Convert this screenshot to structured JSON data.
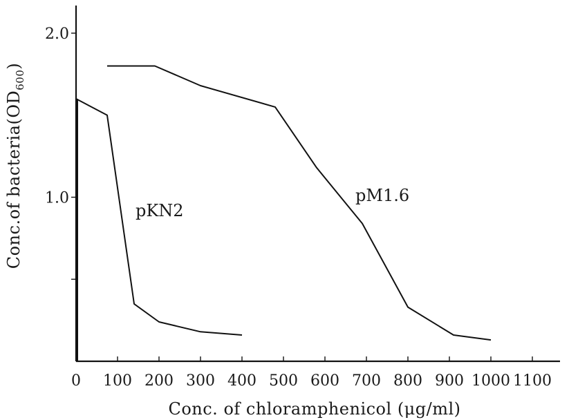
{
  "chart_data": {
    "type": "line",
    "xlabel": "Conc. of chloramphenicol (μg/ml)",
    "ylabel": "Conc.of bacteria(OD600)",
    "xlim": [
      0,
      1100
    ],
    "ylim": [
      0,
      2.0
    ],
    "x_ticks": [
      "0",
      "100",
      "200",
      "300",
      "400",
      "500",
      "600",
      "700",
      "800",
      "900",
      "1000",
      "1100"
    ],
    "y_ticks": [
      "1.0",
      "2.0"
    ],
    "y_tick_values": [
      1.0,
      2.0
    ],
    "y_minor_ticks": [
      0.5
    ],
    "grid": false,
    "series": [
      {
        "name": "pKN2",
        "x": [
          0,
          75,
          140,
          200,
          300,
          400
        ],
        "y": [
          1.6,
          1.5,
          0.35,
          0.24,
          0.18,
          0.16
        ]
      },
      {
        "name": "pM1.6",
        "x": [
          75,
          190,
          300,
          480,
          580,
          690,
          800,
          910,
          1000
        ],
        "y": [
          1.8,
          1.8,
          1.68,
          1.55,
          1.18,
          0.84,
          0.33,
          0.16,
          0.13
        ]
      }
    ],
    "extra_lines": [
      {
        "x": [
          0,
          0
        ],
        "y": [
          1.6,
          0
        ]
      }
    ]
  }
}
